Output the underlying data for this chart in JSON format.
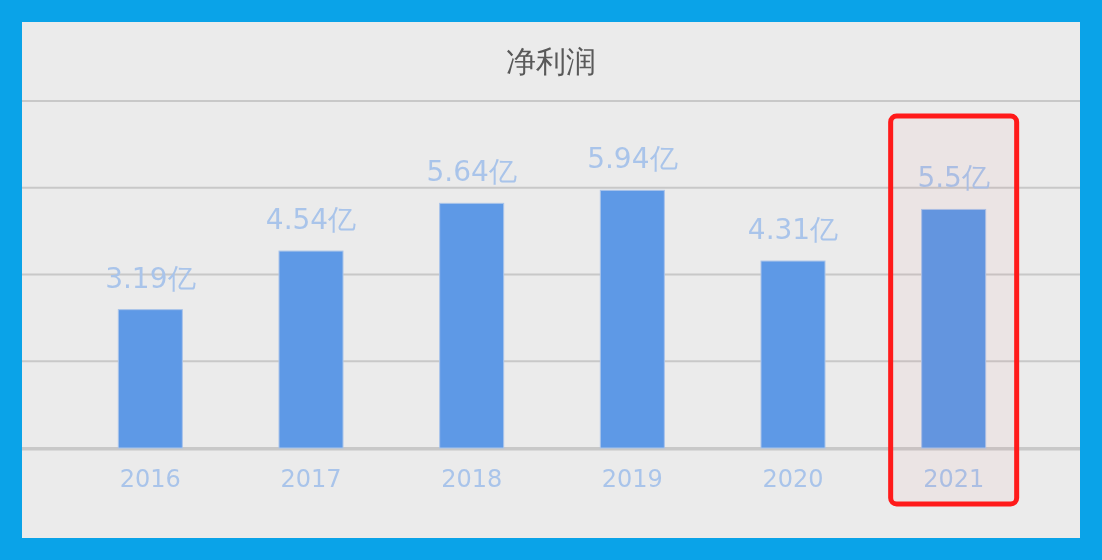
{
  "chart_data": {
    "type": "bar",
    "title": "净利润",
    "categories": [
      "2016",
      "2017",
      "2018",
      "2019",
      "2020",
      "2021"
    ],
    "values": [
      3.19,
      4.54,
      5.64,
      5.94,
      4.31,
      5.5
    ],
    "value_labels": [
      "3.19亿",
      "4.54亿",
      "5.64亿",
      "5.94亿",
      "4.31亿",
      "5.5亿"
    ],
    "color": "#5e99e6",
    "ylim": [
      0,
      8
    ],
    "yticks": [
      {
        "value": 0,
        "label": null
      },
      {
        "value": 2,
        "label": null
      },
      {
        "value": 4,
        "label": null
      },
      {
        "value": 6,
        "label": null
      },
      {
        "value": 8,
        "label": null
      }
    ],
    "tick_labels": "x",
    "grid": "y",
    "bands": [
      {
        "axis": "x",
        "from": "2021",
        "to": "2021",
        "color": "#ff1a1a"
      }
    ]
  }
}
